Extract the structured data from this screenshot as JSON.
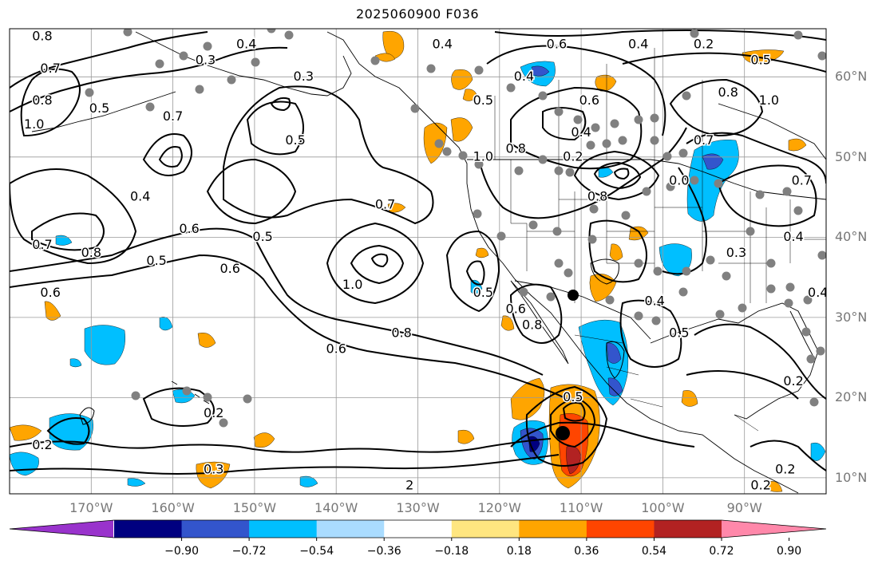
{
  "title": "2025060900 F036",
  "lat_labels": [
    {
      "text": "60°N",
      "lat": 60
    },
    {
      "text": "50°N",
      "lat": 50
    },
    {
      "text": "40°N",
      "lat": 40
    },
    {
      "text": "30°N",
      "lat": 30
    },
    {
      "text": "20°N",
      "lat": 20
    },
    {
      "text": "10°N",
      "lat": 10
    }
  ],
  "lon_labels": [
    {
      "text": "170°W",
      "lon": -170
    },
    {
      "text": "160°W",
      "lon": -160
    },
    {
      "text": "150°W",
      "lon": -150
    },
    {
      "text": "140°W",
      "lon": -140
    },
    {
      "text": "130°W",
      "lon": -130
    },
    {
      "text": "120°W",
      "lon": -120
    },
    {
      "text": "110°W",
      "lon": -110
    },
    {
      "text": "100°W",
      "lon": -100
    },
    {
      "text": "90°W",
      "lon": -90
    }
  ],
  "extent": {
    "lon_min": -180,
    "lon_max": -80,
    "lat_min": 8,
    "lat_max": 66
  },
  "colorbar": {
    "colors": [
      "#9933cc",
      "#000080",
      "#3355cc",
      "#00bfff",
      "#aadcff",
      "#ffffff",
      "#ffe680",
      "#ffa500",
      "#ff4500",
      "#b22222",
      "#ff88aa"
    ],
    "ticks": [
      "−0.90",
      "−0.72",
      "−0.54",
      "−0.36",
      "−0.18",
      "0.18",
      "0.36",
      "0.54",
      "0.72",
      "0.90"
    ]
  },
  "contour_labels": [
    {
      "text": "0.8",
      "lon": -176,
      "lat": 65
    },
    {
      "text": "0.7",
      "lon": -175,
      "lat": 61
    },
    {
      "text": "0.8",
      "lon": -176,
      "lat": 57
    },
    {
      "text": "1.0",
      "lon": -177,
      "lat": 54
    },
    {
      "text": "0.5",
      "lon": -169,
      "lat": 56
    },
    {
      "text": "0.7",
      "lon": -160,
      "lat": 55
    },
    {
      "text": "0.4",
      "lon": -151,
      "lat": 64
    },
    {
      "text": "0.3",
      "lon": -156,
      "lat": 62
    },
    {
      "text": "0.3",
      "lon": -144,
      "lat": 60
    },
    {
      "text": "0.5",
      "lon": -145,
      "lat": 52
    },
    {
      "text": "0.4",
      "lon": -164,
      "lat": 45
    },
    {
      "text": "0.6",
      "lon": -158,
      "lat": 41
    },
    {
      "text": "0.5",
      "lon": -149,
      "lat": 40
    },
    {
      "text": "0.7",
      "lon": -176,
      "lat": 39
    },
    {
      "text": "0.8",
      "lon": -170,
      "lat": 38
    },
    {
      "text": "0.5",
      "lon": -162,
      "lat": 37
    },
    {
      "text": "0.6",
      "lon": -153,
      "lat": 36
    },
    {
      "text": "0.6",
      "lon": -175,
      "lat": 33
    },
    {
      "text": "1.0",
      "lon": -138,
      "lat": 34
    },
    {
      "text": "0.7",
      "lon": -134,
      "lat": 44
    },
    {
      "text": "0.8",
      "lon": -132,
      "lat": 28
    },
    {
      "text": "0.6",
      "lon": -140,
      "lat": 26
    },
    {
      "text": "1.0",
      "lon": -122,
      "lat": 50
    },
    {
      "text": "0.8",
      "lon": -118,
      "lat": 51
    },
    {
      "text": "0.4",
      "lon": -127,
      "lat": 64
    },
    {
      "text": "0.6",
      "lon": -113,
      "lat": 64
    },
    {
      "text": "0.4",
      "lon": -117,
      "lat": 60
    },
    {
      "text": "0.5",
      "lon": -122,
      "lat": 57
    },
    {
      "text": "0.4",
      "lon": -110,
      "lat": 53
    },
    {
      "text": "0.6",
      "lon": -109,
      "lat": 57
    },
    {
      "text": "0.2",
      "lon": -111,
      "lat": 50
    },
    {
      "text": "0.4",
      "lon": -103,
      "lat": 64
    },
    {
      "text": "0.2",
      "lon": -95,
      "lat": 64
    },
    {
      "text": "0.5",
      "lon": -88,
      "lat": 62
    },
    {
      "text": "0.8",
      "lon": -92,
      "lat": 58
    },
    {
      "text": "1.0",
      "lon": -87,
      "lat": 57
    },
    {
      "text": "0.7",
      "lon": -95,
      "lat": 52
    },
    {
      "text": "0.8",
      "lon": -108,
      "lat": 45
    },
    {
      "text": "0.0",
      "lon": -98,
      "lat": 47
    },
    {
      "text": "0.7",
      "lon": -83,
      "lat": 47
    },
    {
      "text": "0.3",
      "lon": -91,
      "lat": 38
    },
    {
      "text": "0.4",
      "lon": -84,
      "lat": 40
    },
    {
      "text": "0.5",
      "lon": -122,
      "lat": 33
    },
    {
      "text": "0.6",
      "lon": -118,
      "lat": 31
    },
    {
      "text": "0.8",
      "lon": -116,
      "lat": 29
    },
    {
      "text": "0.4",
      "lon": -101,
      "lat": 32
    },
    {
      "text": "0.5",
      "lon": -98,
      "lat": 28
    },
    {
      "text": "0.4",
      "lon": -81,
      "lat": 33
    },
    {
      "text": "0.2",
      "lon": -84,
      "lat": 22
    },
    {
      "text": "0.5",
      "lon": -111,
      "lat": 20
    },
    {
      "text": "0.2",
      "lon": -155,
      "lat": 18
    },
    {
      "text": "0.2",
      "lon": -176,
      "lat": 14
    },
    {
      "text": "0.3",
      "lon": -155,
      "lat": 11
    },
    {
      "text": "2",
      "lon": -131,
      "lat": 9
    },
    {
      "text": "0.2",
      "lon": -88,
      "lat": 9
    },
    {
      "text": "0.2",
      "lon": -85,
      "lat": 11
    }
  ]
}
